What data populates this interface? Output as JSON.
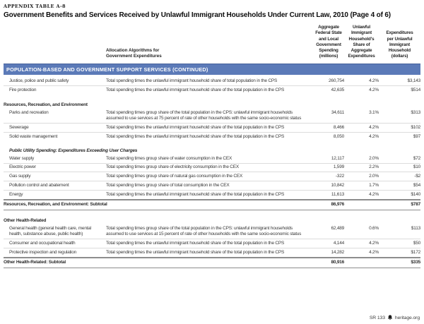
{
  "page": {
    "eyebrow": "APPENDIX TABLE A-8",
    "title": "Government Benefits and Services Received by Unlawful Immigrant Households Under Current Law, 2010 (Page 4 of 6)",
    "footer": {
      "report_id": "SR 133",
      "site": "heritage.org",
      "logo_icon": "liberty-bell-icon"
    }
  },
  "colors": {
    "band_blue": "#5b7ab8",
    "band_text": "#ffffff",
    "hairline": "#dcdcdc",
    "subtotal_rule": "#8d8d8d"
  },
  "table": {
    "column_headers": {
      "algorithm": "Allocation Algorithms for\nGovernment Expenditures",
      "spending": "Aggregate\nFederal State\nand Local\nGovernment\nSpending\n(millions)",
      "share": "Unlawful\nImmigrant\nHousehold's\nShare of\nAggregate\nExpenditures",
      "per_household": "Expenditures\nper Unlawful\nImmigrant\nHousehold\n(dollars)"
    },
    "section_band": "POPULATION-BASED AND GOVERNMENT SUPPORT SERVICES (CONTINUED)",
    "rows": [
      {
        "type": "row",
        "label": "Justice, police and public safety",
        "desc": "Total spending times the unlawful immigrant household share of total population in the CPS",
        "spending": "260,754",
        "share": "4.2%",
        "per": "$3,143"
      },
      {
        "type": "row",
        "label": "Fire protection",
        "desc": "Total spending times the unlawful immigrant household share of the total population in the CPS",
        "spending": "42,635",
        "share": "4.2%",
        "per": "$514"
      },
      {
        "type": "section",
        "label": "Resources, Recreation, and Environment"
      },
      {
        "type": "row",
        "label": "Parks and recreation",
        "desc": "Total spending times group share of the total population in the CPS: unlawful immigrant households assumed to use services at 75 percent of rate of other households with the same socio-economic status",
        "spending": "34,611",
        "share": "3.1%",
        "per": "$313"
      },
      {
        "type": "row",
        "label": "Sewerage",
        "desc": "Total spending times the unlawful immigrant household share of the total population in the CPS",
        "spending": "8,466",
        "share": "4.2%",
        "per": "$102"
      },
      {
        "type": "row",
        "label": "Solid waste management",
        "desc": "Total spending times the unlawful immigrant household share of the total population in the CPS",
        "spending": "8,050",
        "share": "4.2%",
        "per": "$97"
      },
      {
        "type": "subsection",
        "label": "Public Utility Spending: Expenditures Exceeding User Charges"
      },
      {
        "type": "row",
        "label": "Water supply",
        "desc": "Total spending times group share of water consumption in the CEX",
        "spending": "12,117",
        "share": "2.0%",
        "per": "$72"
      },
      {
        "type": "row",
        "label": "Electric power",
        "desc": "Total spending times group share of electricity consumption in the CEX",
        "spending": "1,599",
        "share": "2.2%",
        "per": "$10"
      },
      {
        "type": "row",
        "label": "Gas supply",
        "desc": "Total spending times group share of natural gas consumption in the CEX",
        "spending": "-322",
        "share": "2.0%",
        "per": "-$2"
      },
      {
        "type": "row",
        "label": "Pollution control and abatement",
        "desc": "Total spending times group share of total consumption in the CEX",
        "spending": "10,842",
        "share": "1.7%",
        "per": "$54"
      },
      {
        "type": "row",
        "label": "Energy",
        "desc": "Total spending times the unlawful immigrant household share of the total population in the CPS",
        "spending": "11,613",
        "share": "4.2%",
        "per": "$140"
      },
      {
        "type": "subtotal",
        "label": "Resources, Recreation, and Environment: Subtotal",
        "spending": "86,976",
        "share": "",
        "per": "$787"
      },
      {
        "type": "section",
        "label": "Other Health-Related"
      },
      {
        "type": "row",
        "label": "General health (general health care, mental health, substance abuse, public health)",
        "desc": "Total spending times group share of the total population in the CPS: unlawful immigrant households assumed to use services at 15 percent of rate of other households with the same socio-economic status",
        "spending": "62,489",
        "share": "0.6%",
        "per": "$113"
      },
      {
        "type": "row",
        "label": "Consumer and occupational health",
        "desc": "Total spending times the unlawful immigrant household share of the total population in the CPS",
        "spending": "4,144",
        "share": "4.2%",
        "per": "$50"
      },
      {
        "type": "row",
        "label": "Protective inspection and regulation",
        "desc": "Total spending times the unlawful immigrant household share of the total population in the CPS",
        "spending": "14,282",
        "share": "4.2%",
        "per": "$172"
      },
      {
        "type": "subtotal",
        "label": "Other Health-Related: Subtotal",
        "spending": "80,916",
        "share": "",
        "per": "$335"
      }
    ]
  }
}
